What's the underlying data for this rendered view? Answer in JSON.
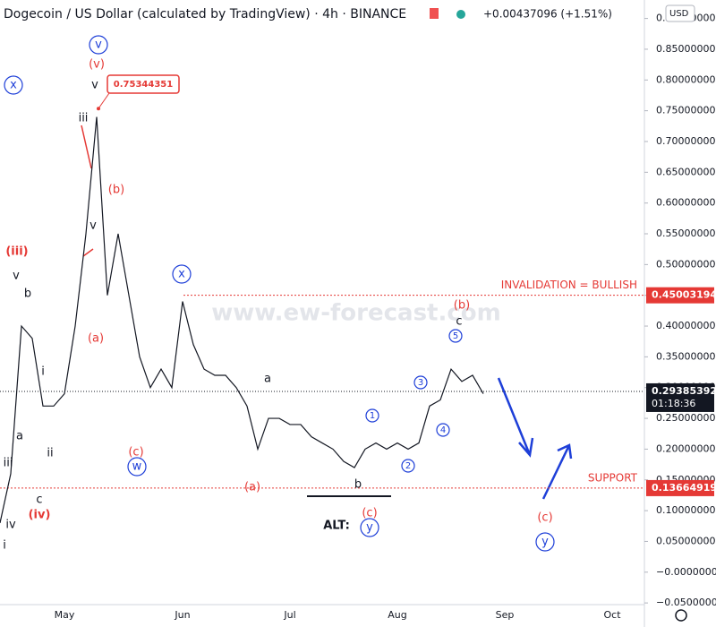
{
  "chart_data": {
    "type": "line",
    "title": "Dogecoin / US Dollar (calculated by TradingView) · 4h · BINANCE",
    "change": "+0.00437096 (+1.51%)",
    "currency": "USD",
    "watermark": "www.ew-forecast.com",
    "categories": [
      null,
      null,
      null,
      null,
      null,
      null,
      "May",
      null,
      null,
      null,
      null,
      null,
      null,
      null,
      null,
      null,
      null,
      "Jun",
      null,
      null,
      null,
      null,
      null,
      null,
      null,
      null,
      null,
      "Jul",
      null,
      null,
      null,
      null,
      null,
      null,
      null,
      null,
      null,
      "Aug",
      null,
      null,
      null,
      null,
      null,
      null,
      null,
      null,
      null,
      "Sep",
      null,
      null,
      null,
      null,
      null,
      null,
      null,
      null,
      null,
      "Oct",
      null,
      null
    ],
    "values": [
      0.08,
      0.16,
      0.4,
      0.38,
      0.27,
      0.27,
      0.29,
      0.4,
      0.55,
      0.74,
      0.45,
      0.55,
      0.45,
      0.35,
      0.3,
      0.33,
      0.3,
      0.44,
      0.37,
      0.33,
      0.32,
      0.32,
      0.3,
      0.27,
      0.2,
      0.25,
      0.25,
      0.24,
      0.24,
      0.22,
      0.21,
      0.2,
      0.18,
      0.17,
      0.2,
      0.21,
      0.2,
      0.21,
      0.2,
      0.21,
      0.27,
      0.28,
      0.33,
      0.31,
      0.32,
      0.29,
      null,
      null,
      null,
      null,
      null,
      null,
      null,
      null,
      null,
      null,
      null,
      null,
      null,
      null
    ],
    "color": "#131722",
    "ylim": [
      -0.06,
      0.93
    ],
    "yticks": [
      {
        "value": 0.9,
        "label": "0.90000000"
      },
      {
        "value": 0.85,
        "label": "0.85000000"
      },
      {
        "value": 0.8,
        "label": "0.80000000"
      },
      {
        "value": 0.75,
        "label": "0.75000000"
      },
      {
        "value": 0.7,
        "label": "0.70000000"
      },
      {
        "value": 0.65,
        "label": "0.65000000"
      },
      {
        "value": 0.6,
        "label": "0.60000000"
      },
      {
        "value": 0.55,
        "label": "0.55000000"
      },
      {
        "value": 0.5,
        "label": "0.50000000"
      },
      {
        "value": 0.45,
        "label": "0.45000000"
      },
      {
        "value": 0.4,
        "label": "0.40000000"
      },
      {
        "value": 0.35,
        "label": "0.35000000"
      },
      {
        "value": 0.3,
        "label": "0.30000000"
      },
      {
        "value": 0.25,
        "label": "0.25000000"
      },
      {
        "value": 0.2,
        "label": "0.20000000"
      },
      {
        "value": 0.15,
        "label": "0.15000000"
      },
      {
        "value": 0.1,
        "label": "0.10000000"
      },
      {
        "value": 0.05,
        "label": "0.05000000"
      },
      {
        "value": 0,
        "label": "−0.00000000"
      },
      {
        "value": -0.05,
        "label": "−0.05000000"
      }
    ],
    "peak": {
      "value": 0.75344351,
      "color": "#e53935"
    },
    "levels": [
      {
        "label": "INVALIDATION = BULLISH",
        "value": 0.45003194,
        "color": "#e53935"
      },
      {
        "label": "SUPPORT",
        "value": 0.13664919,
        "color": "#e53935"
      }
    ],
    "last_price": {
      "value": 0.29385392,
      "countdown": "01:18:36",
      "color": "#131722"
    },
    "annotations": [
      {
        "text": "v",
        "color": "#1e3fd8",
        "circled": true
      },
      {
        "text": "(v)",
        "color": "#e53935"
      },
      {
        "text": "v",
        "color": "#131722"
      },
      {
        "text": "x",
        "color": "#1e3fd8",
        "circled": true
      },
      {
        "text": "iii",
        "color": "#131722"
      },
      {
        "text": "(b)",
        "color": "#e53935"
      },
      {
        "text": "v",
        "color": "#131722"
      },
      {
        "text": "(iii)",
        "color": "#e53935"
      },
      {
        "text": "v",
        "color": "#131722"
      },
      {
        "text": "b",
        "color": "#131722"
      },
      {
        "text": "(a)",
        "color": "#e53935"
      },
      {
        "text": "i",
        "color": "#131722"
      },
      {
        "text": "a",
        "color": "#131722"
      },
      {
        "text": "ii",
        "color": "#131722"
      },
      {
        "text": "iii",
        "color": "#131722"
      },
      {
        "text": "c",
        "color": "#131722"
      },
      {
        "text": "(iv)",
        "color": "#e53935"
      },
      {
        "text": "iv",
        "color": "#131722"
      },
      {
        "text": "i",
        "color": "#131722"
      },
      {
        "text": "x",
        "color": "#1e3fd8",
        "circled": true
      },
      {
        "text": "(c)",
        "color": "#e53935"
      },
      {
        "text": "w",
        "color": "#1e3fd8",
        "circled": true
      },
      {
        "text": "a",
        "color": "#131722"
      },
      {
        "text": "(a)",
        "color": "#e53935"
      },
      {
        "text": "b",
        "color": "#131722"
      },
      {
        "text": "(c)",
        "color": "#e53935"
      },
      {
        "text": "y",
        "color": "#1e3fd8",
        "circled": true
      },
      {
        "text": "ALT:",
        "color": "#131722"
      },
      {
        "text": "1",
        "color": "#1e3fd8",
        "circled": true
      },
      {
        "text": "2",
        "color": "#1e3fd8",
        "circled": true
      },
      {
        "text": "3",
        "color": "#1e3fd8",
        "circled": true
      },
      {
        "text": "4",
        "color": "#1e3fd8",
        "circled": true
      },
      {
        "text": "5",
        "color": "#1e3fd8",
        "circled": true
      },
      {
        "text": "(b)",
        "color": "#e53935"
      },
      {
        "text": "c",
        "color": "#131722"
      },
      {
        "text": "(c)",
        "color": "#e53935"
      },
      {
        "text": "y",
        "color": "#1e3fd8",
        "circled": true
      }
    ]
  }
}
